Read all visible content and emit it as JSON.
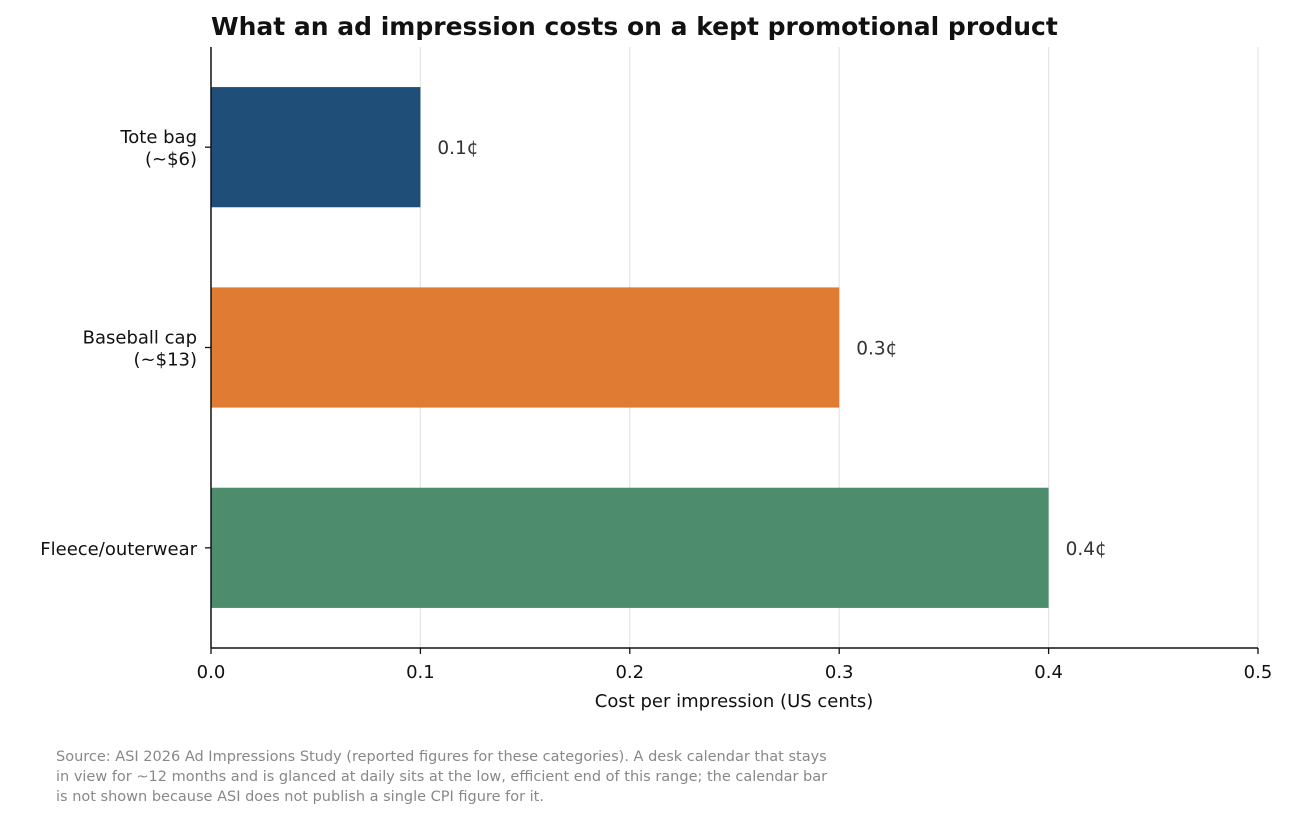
{
  "chart_data": {
    "type": "bar",
    "orientation": "horizontal",
    "title": "What an ad impression costs on a kept promotional product",
    "xlabel": "Cost per impression (US cents)",
    "ylabel": "",
    "xlim": [
      0,
      0.5
    ],
    "xticks": [
      "0.0",
      "0.1",
      "0.2",
      "0.3",
      "0.4",
      "0.5"
    ],
    "grid": true,
    "categories": [
      {
        "lines": [
          "Tote bag",
          "(~$6)"
        ]
      },
      {
        "lines": [
          "Baseball cap",
          "(~$13)"
        ]
      },
      {
        "lines": [
          "Fleece/outerwear"
        ]
      }
    ],
    "values": [
      0.1,
      0.3,
      0.4
    ],
    "value_labels": [
      "0.1¢",
      "0.3¢",
      "0.4¢"
    ],
    "colors": [
      "#1f4e79",
      "#e07b33",
      "#4e8c6e"
    ]
  },
  "source_note": {
    "lines": [
      "Source: ASI 2026 Ad Impressions Study (reported figures for these categories). A desk calendar that stays",
      "in view for ~12 months and is glanced at daily sits at the low, efficient end of this range; the calendar bar",
      "is not shown because ASI does not publish a single CPI figure for it."
    ]
  }
}
